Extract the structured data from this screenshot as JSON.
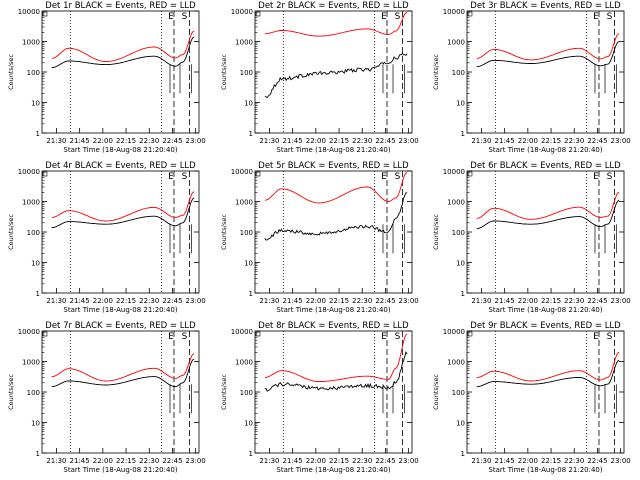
{
  "chart_data": [
    {
      "type": "line",
      "yscale": "log",
      "ylim": [
        1,
        10000
      ],
      "title": "Det 1r BLACK = Events, RED = LLD",
      "xlabel": "Start Time (18-Aug-08 21:20:40)",
      "ylabel": "Counts/sec",
      "xtick_labels": [
        "21:30",
        "21:45",
        "22:00",
        "22:15",
        "22:30",
        "22:45",
        "23:00"
      ],
      "ytick_labels": [
        "1",
        "10",
        "100",
        "1000",
        "10000"
      ],
      "marker_labels": [
        "E",
        "S"
      ],
      "series": [
        {
          "color": "#ff0000",
          "style": "arch",
          "values": [
            280,
            600,
            220,
            660,
            290,
            370,
            2200
          ]
        },
        {
          "color": "#000000",
          "style": "arch",
          "values": [
            140,
            230,
            175,
            330,
            155,
            210,
            1400
          ]
        }
      ]
    },
    {
      "type": "line",
      "yscale": "log",
      "ylim": [
        1,
        10000
      ],
      "title": "Det 2r BLACK = Events, RED = LLD",
      "xlabel": "Start Time (18-Aug-08 21:20:40)",
      "ylabel": "Counts/sec",
      "xtick_labels": [
        "21:30",
        "21:45",
        "22:00",
        "22:15",
        "22:30",
        "22:45",
        "23:00"
      ],
      "ytick_labels": [
        "1",
        "10",
        "100",
        "1000",
        "10000"
      ],
      "marker_labels": [
        "E",
        "S"
      ],
      "series": [
        {
          "color": "#ff0000",
          "style": "arch",
          "values": [
            1800,
            2300,
            1500,
            2600,
            1700,
            2200,
            9000
          ]
        },
        {
          "color": "#000000",
          "style": "noisy",
          "values": [
            15,
            60,
            90,
            120,
            200,
            300,
            400
          ]
        }
      ]
    },
    {
      "type": "line",
      "yscale": "log",
      "ylim": [
        1,
        10000
      ],
      "title": "Det 3r BLACK = Events, RED = LLD",
      "xlabel": "Start Time (18-Aug-08 21:20:40)",
      "ylabel": "Counts/sec",
      "xtick_labels": [
        "21:30",
        "21:45",
        "22:00",
        "22:15",
        "22:30",
        "22:45",
        "23:00"
      ],
      "ytick_labels": [
        "1",
        "10",
        "100",
        "1000",
        "10000"
      ],
      "marker_labels": [
        "E",
        "S"
      ],
      "series": [
        {
          "color": "#ff0000",
          "style": "arch",
          "values": [
            280,
            550,
            250,
            600,
            270,
            320,
            1800
          ]
        },
        {
          "color": "#000000",
          "style": "arch",
          "values": [
            150,
            240,
            190,
            330,
            160,
            180,
            1000
          ]
        }
      ]
    },
    {
      "type": "line",
      "yscale": "log",
      "ylim": [
        1,
        10000
      ],
      "title": "Det 4r BLACK = Events, RED = LLD",
      "xlabel": "Start Time (18-Aug-08 21:20:40)",
      "ylabel": "Counts/sec",
      "xtick_labels": [
        "21:30",
        "21:45",
        "22:00",
        "22:15",
        "22:30",
        "22:45",
        "23:00"
      ],
      "ytick_labels": [
        "1",
        "10",
        "100",
        "1000",
        "10000"
      ],
      "marker_labels": [
        "E",
        "S"
      ],
      "series": [
        {
          "color": "#ff0000",
          "style": "arch",
          "values": [
            300,
            500,
            230,
            640,
            300,
            350,
            2100
          ]
        },
        {
          "color": "#000000",
          "style": "arch",
          "values": [
            140,
            220,
            180,
            330,
            160,
            200,
            1300
          ]
        }
      ]
    },
    {
      "type": "line",
      "yscale": "log",
      "ylim": [
        1,
        10000
      ],
      "title": "Det 5r BLACK = Events, RED = LLD",
      "xlabel": "Start Time (18-Aug-08 21:20:40)",
      "ylabel": "Counts/sec",
      "xtick_labels": [
        "21:30",
        "21:45",
        "22:00",
        "22:15",
        "22:30",
        "22:45",
        "23:00"
      ],
      "ytick_labels": [
        "1",
        "10",
        "100",
        "1000",
        "10000"
      ],
      "marker_labels": [
        "E",
        "S"
      ],
      "series": [
        {
          "color": "#ff0000",
          "style": "arch",
          "values": [
            1100,
            2600,
            900,
            3000,
            1000,
            1300,
            9000
          ]
        },
        {
          "color": "#000000",
          "style": "noisy",
          "values": [
            60,
            110,
            90,
            150,
            100,
            250,
            1800
          ]
        }
      ]
    },
    {
      "type": "line",
      "yscale": "log",
      "ylim": [
        1,
        10000
      ],
      "title": "Det 6r BLACK = Events, RED = LLD",
      "xlabel": "Start Time (18-Aug-08 21:20:40)",
      "ylabel": "Counts/sec",
      "xtick_labels": [
        "21:30",
        "21:45",
        "22:00",
        "22:15",
        "22:30",
        "22:45",
        "23:00"
      ],
      "ytick_labels": [
        "1",
        "10",
        "100",
        "1000",
        "10000"
      ],
      "marker_labels": [
        "E",
        "S"
      ],
      "series": [
        {
          "color": "#ff0000",
          "style": "arch",
          "values": [
            280,
            600,
            260,
            650,
            300,
            330,
            2000
          ]
        },
        {
          "color": "#000000",
          "style": "arch",
          "values": [
            130,
            230,
            180,
            320,
            150,
            180,
            1100
          ]
        }
      ]
    },
    {
      "type": "line",
      "yscale": "log",
      "ylim": [
        1,
        10000
      ],
      "title": "Det 7r BLACK = Events, RED = LLD",
      "xlabel": "Start Time (18-Aug-08 21:20:40)",
      "ylabel": "Counts/sec",
      "xtick_labels": [
        "21:30",
        "21:45",
        "22:00",
        "22:15",
        "22:30",
        "22:45",
        "23:00"
      ],
      "ytick_labels": [
        "1",
        "10",
        "100",
        "1000",
        "10000"
      ],
      "marker_labels": [
        "E",
        "S"
      ],
      "series": [
        {
          "color": "#ff0000",
          "style": "arch",
          "values": [
            320,
            580,
            230,
            600,
            280,
            350,
            1800
          ]
        },
        {
          "color": "#000000",
          "style": "arch",
          "values": [
            150,
            230,
            170,
            320,
            150,
            200,
            1200
          ]
        }
      ]
    },
    {
      "type": "line",
      "yscale": "log",
      "ylim": [
        1,
        10000
      ],
      "title": "Det 8r BLACK = Events, RED = LLD",
      "xlabel": "Start Time (18-Aug-08 21:20:40)",
      "ylabel": "Counts/sec",
      "xtick_labels": [
        "21:30",
        "21:45",
        "22:00",
        "22:15",
        "22:30",
        "22:45",
        "23:00"
      ],
      "ytick_labels": [
        "1",
        "10",
        "100",
        "1000",
        "10000"
      ],
      "marker_labels": [
        "E",
        "S"
      ],
      "series": [
        {
          "color": "#ff0000",
          "style": "arch",
          "values": [
            300,
            500,
            220,
            330,
            260,
            600,
            8000
          ]
        },
        {
          "color": "#000000",
          "style": "noisy",
          "values": [
            120,
            180,
            130,
            160,
            140,
            200,
            2000
          ]
        }
      ]
    },
    {
      "type": "line",
      "yscale": "log",
      "ylim": [
        1,
        10000
      ],
      "title": "Det 9r BLACK = Events, RED = LLD",
      "xlabel": "Start Time (18-Aug-08 21:20:40)",
      "ylabel": "Counts/sec",
      "xtick_labels": [
        "21:30",
        "21:45",
        "22:00",
        "22:15",
        "22:30",
        "22:45",
        "23:00"
      ],
      "ytick_labels": [
        "1",
        "10",
        "100",
        "1000",
        "10000"
      ],
      "marker_labels": [
        "E",
        "S"
      ],
      "series": [
        {
          "color": "#ff0000",
          "style": "arch",
          "values": [
            300,
            480,
            230,
            500,
            250,
            300,
            2000
          ]
        },
        {
          "color": "#000000",
          "style": "arch",
          "values": [
            150,
            220,
            180,
            300,
            160,
            180,
            1100
          ]
        }
      ]
    }
  ]
}
